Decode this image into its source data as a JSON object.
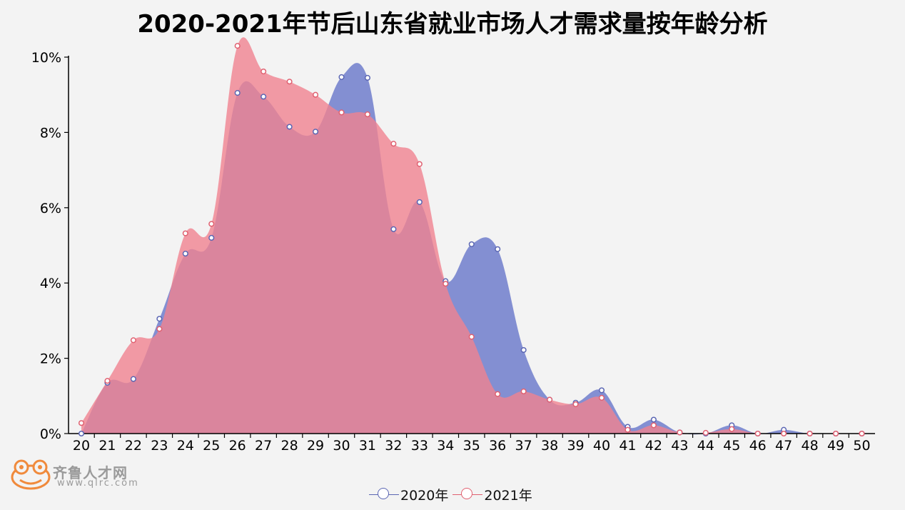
{
  "chart_data": {
    "type": "area",
    "title": "2020-2021年节后山东省就业市场人才需求量按年龄分析",
    "categories": [
      "20",
      "21",
      "22",
      "23",
      "24",
      "25",
      "26",
      "27",
      "28",
      "29",
      "30",
      "31",
      "32",
      "33",
      "34",
      "35",
      "36",
      "37",
      "38",
      "39",
      "40",
      "41",
      "42",
      "43",
      "44",
      "45",
      "46",
      "47",
      "48",
      "49",
      "50"
    ],
    "ylim": [
      0,
      10
    ],
    "yticks": [
      "0%",
      "2%",
      "4%",
      "6%",
      "8%",
      "10%"
    ],
    "ytick_values": [
      0,
      2,
      4,
      6,
      8,
      10
    ],
    "series": [
      {
        "name": "2020年",
        "color": "#7a87cf",
        "marker_color": "#5b66b3",
        "values": [
          0.0,
          1.35,
          1.45,
          3.05,
          4.78,
          5.2,
          9.05,
          8.95,
          8.15,
          8.02,
          9.47,
          9.45,
          5.43,
          6.15,
          4.05,
          5.03,
          4.9,
          2.22,
          0.9,
          0.82,
          1.15,
          0.18,
          0.37,
          0.03,
          0.0,
          0.22,
          0.0,
          0.1,
          0.0,
          0.0,
          0.0
        ]
      },
      {
        "name": "2021年",
        "color": "#f08290",
        "marker_color": "#e06070",
        "values": [
          0.28,
          1.4,
          2.48,
          2.78,
          5.32,
          5.57,
          10.3,
          9.62,
          9.35,
          9.0,
          8.53,
          8.48,
          7.7,
          7.16,
          3.98,
          2.57,
          1.05,
          1.12,
          0.9,
          0.78,
          0.95,
          0.1,
          0.22,
          0.03,
          0.02,
          0.12,
          0.0,
          0.0,
          0.0,
          0.0,
          0.0
        ]
      }
    ],
    "grid": false,
    "legend_position": "bottom-center"
  },
  "legend": {
    "items": [
      {
        "label": "2020年",
        "color": "#5b66b3"
      },
      {
        "label": "2021年",
        "color": "#e06070"
      }
    ]
  },
  "logo": {
    "name": "齐鲁人才网",
    "url": "www.qlrc.com",
    "color": "#f08a3c"
  }
}
